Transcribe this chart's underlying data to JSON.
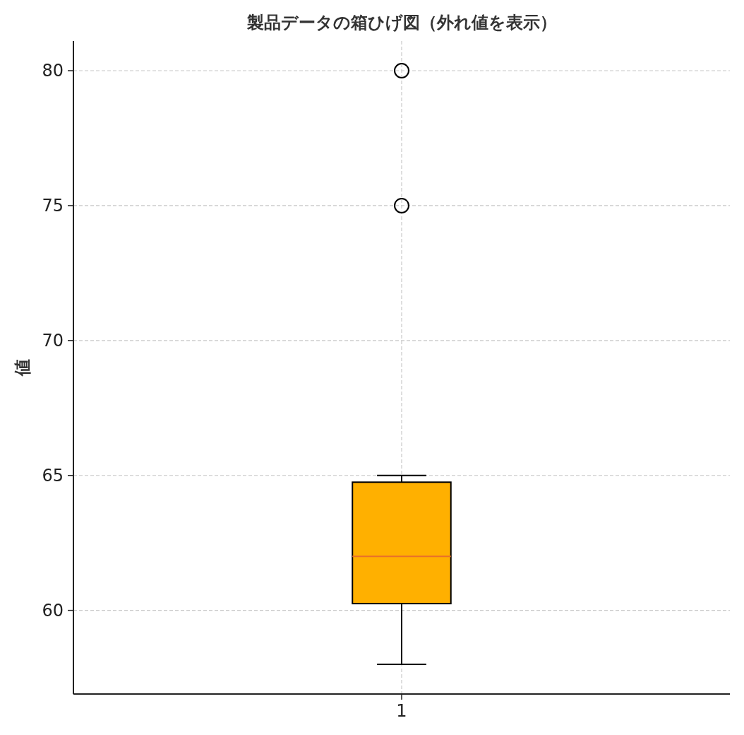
{
  "chart_data": {
    "type": "box",
    "title": "製品データの箱ひげ図（外れ値を表示）",
    "ylabel": "値",
    "categories": [
      "1"
    ],
    "boxes": [
      {
        "low": 58,
        "q1": 60.25,
        "median": 62,
        "q3": 64.75,
        "high": 65,
        "outliers": [
          75,
          80
        ]
      }
    ],
    "color": "#ffb000",
    "ylim": [
      56.9,
      81.1
    ],
    "yticks": [
      60,
      65,
      70,
      75,
      80
    ],
    "grid": true
  }
}
